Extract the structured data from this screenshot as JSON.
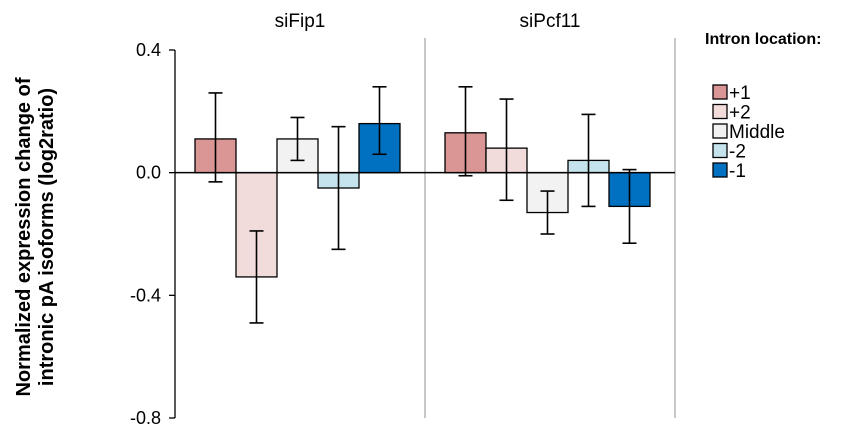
{
  "chart_data": {
    "type": "bar",
    "groups": [
      "siFip1",
      "siPcf11"
    ],
    "ylabel_line1": "Normalized expression change of",
    "ylabel_line2": "intronic pA isoforms (log2ratio)",
    "ylim": [
      -0.8,
      0.4
    ],
    "yticks": [
      0.4,
      0.0,
      -0.4,
      -0.8
    ],
    "ytick_labels": [
      "0.4",
      "0.0",
      "-0.4",
      "-0.8"
    ],
    "grid": false,
    "legend_title": "Intron location:",
    "legend_position": "right",
    "series": [
      {
        "name": "+1",
        "color": "#DA9694",
        "values": [
          0.11,
          0.13
        ],
        "err_low": [
          -0.03,
          -0.01
        ],
        "err_high": [
          0.26,
          0.28
        ]
      },
      {
        "name": "+2",
        "color": "#F2DCDB",
        "values": [
          -0.34,
          0.08
        ],
        "err_low": [
          -0.49,
          -0.09
        ],
        "err_high": [
          -0.19,
          0.24
        ]
      },
      {
        "name": "Middle",
        "color": "#F2F2F2",
        "values": [
          0.11,
          -0.13
        ],
        "err_low": [
          0.04,
          -0.2
        ],
        "err_high": [
          0.18,
          -0.06
        ]
      },
      {
        "name": "-2",
        "color": "#C5E3EC",
        "values": [
          -0.05,
          0.04
        ],
        "err_low": [
          -0.25,
          -0.11
        ],
        "err_high": [
          0.15,
          0.19
        ]
      },
      {
        "name": "-1",
        "color": "#0070C0",
        "values": [
          0.16,
          -0.11
        ],
        "err_low": [
          0.06,
          -0.23
        ],
        "err_high": [
          0.28,
          0.01
        ]
      }
    ]
  }
}
